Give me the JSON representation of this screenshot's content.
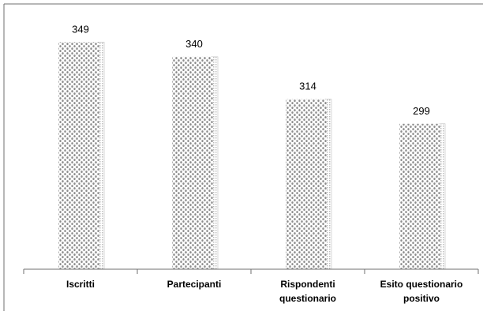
{
  "chart_data": {
    "type": "bar",
    "categories": [
      [
        "Iscritti"
      ],
      [
        "Partecipanti"
      ],
      [
        "Rispondenti",
        "questionario"
      ],
      [
        "Esito questionario",
        "positivo"
      ]
    ],
    "values": [
      349,
      340,
      314,
      299
    ],
    "data_labels": [
      "349",
      "340",
      "314",
      "299"
    ],
    "title": "",
    "xlabel": "",
    "ylabel": "",
    "ylim": [
      210,
      360
    ],
    "grid": false,
    "legend": "none",
    "colors": {
      "bar_dots": "#8c8c8c",
      "bar_base": "#ffffff",
      "bar_shadow": "#bcbcbc",
      "axis": "#6f6f6f",
      "border": "#6f6f6f",
      "text": "#000000"
    }
  }
}
